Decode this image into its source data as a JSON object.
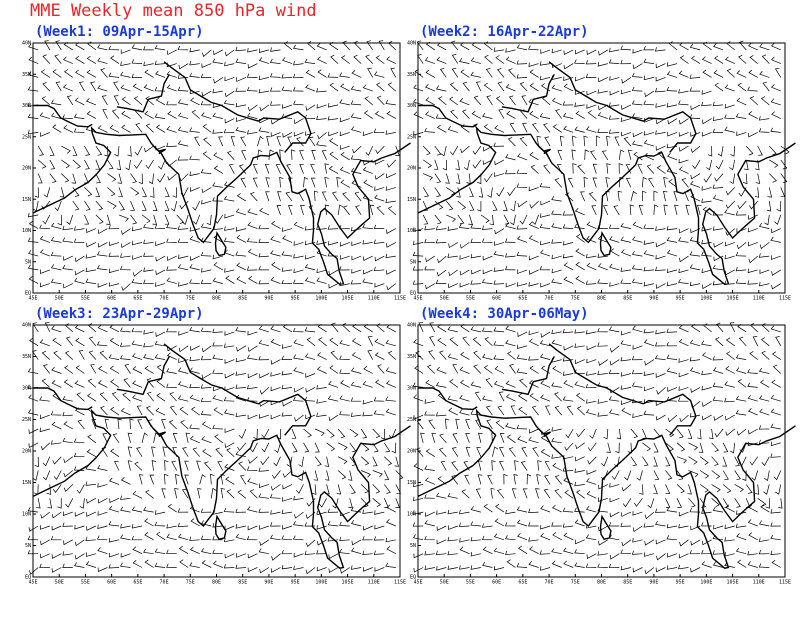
{
  "title": "MME Weekly mean 850 hPa wind",
  "panels": [
    {
      "title": "(Week1: 09Apr-15Apr)"
    },
    {
      "title": "(Week2: 16Apr-22Apr)"
    },
    {
      "title": "(Week3: 23Apr-29Apr)"
    },
    {
      "title": "(Week4: 30Apr-06May)"
    }
  ],
  "lon_labels": [
    "45E",
    "50E",
    "55E",
    "60E",
    "65E",
    "70E",
    "75E",
    "80E",
    "85E",
    "90E",
    "95E",
    "100E",
    "105E",
    "110E",
    "115E"
  ],
  "lat_labels": [
    "EQ",
    "5N",
    "10N",
    "15N",
    "20N",
    "25N",
    "30N",
    "35N",
    "40N"
  ]
}
